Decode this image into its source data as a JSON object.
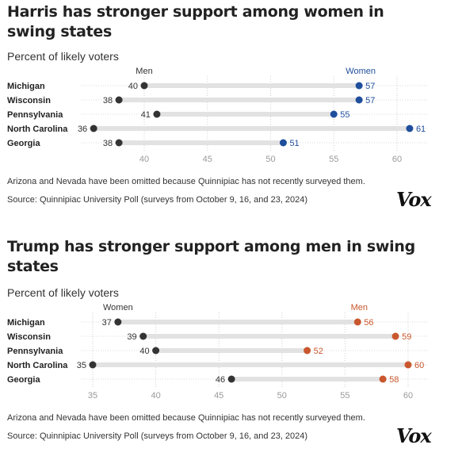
{
  "brand": {
    "logo_text": "Vox"
  },
  "chart_data": [
    {
      "type": "dot-range",
      "title": "Harris has stronger support among women in swing states",
      "subtitle": "Percent of likely voters",
      "note": "Arizona and Nevada have been omitted because Quinnipiac has not recently surveyed them.",
      "source": "Source: Quinnipiac University Poll (surveys from October 9, 16, and 23, 2024)",
      "categories": [
        "Michigan",
        "Wisconsin",
        "Pennsylvania",
        "North Carolina",
        "Georgia"
      ],
      "series": [
        {
          "name": "Men",
          "values": [
            40,
            38,
            41,
            36,
            38
          ],
          "color": "#333333"
        },
        {
          "name": "Women",
          "values": [
            57,
            57,
            55,
            61,
            51
          ],
          "color": "#1f4e9c"
        }
      ],
      "xlim": [
        35,
        61
      ],
      "xticks": [
        40,
        45,
        50,
        55,
        60
      ],
      "grid": true
    },
    {
      "type": "dot-range",
      "title": "Trump has stronger support among men in swing states",
      "subtitle": "Percent of likely voters",
      "note": "Arizona and Nevada have been omitted because Quinnipiac has not recently surveyed them.",
      "source": "Source: Quinnipiac University Poll (surveys from October 9, 16, and 23, 2024)",
      "categories": [
        "Michigan",
        "Wisconsin",
        "Pennsylvania",
        "North Carolina",
        "Georgia"
      ],
      "series": [
        {
          "name": "Women",
          "values": [
            37,
            39,
            40,
            35,
            46
          ],
          "color": "#333333"
        },
        {
          "name": "Men",
          "values": [
            56,
            59,
            52,
            60,
            58
          ],
          "color": "#c9572d"
        }
      ],
      "xlim": [
        35,
        60
      ],
      "xticks": [
        35,
        40,
        45,
        50,
        55,
        60
      ],
      "grid": true
    }
  ]
}
